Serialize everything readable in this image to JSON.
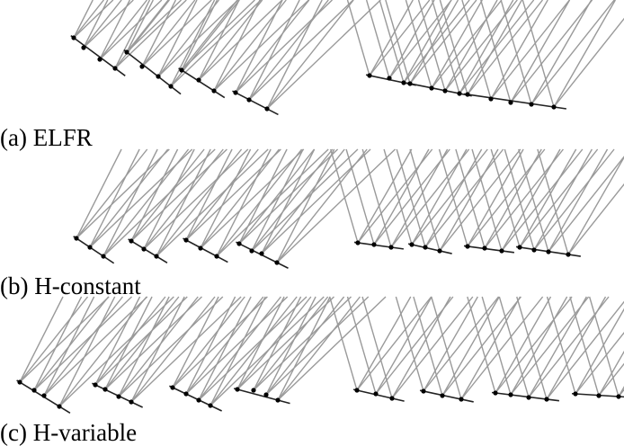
{
  "panels": [
    {
      "caption": "(a) ELFR",
      "groups": [
        {
          "pts": [
            [
              82,
              42
            ],
            [
              93,
              53
            ],
            [
              111,
              66
            ],
            [
              128,
              76
            ]
          ],
          "slant": "left"
        },
        {
          "pts": [
            [
              141,
              58
            ],
            [
              158,
              74
            ],
            [
              176,
              85
            ],
            [
              190,
              96
            ]
          ],
          "slant": "left"
        },
        {
          "pts": [
            [
              202,
              78
            ],
            [
              221,
              89
            ],
            [
              238,
              101
            ]
          ],
          "slant": "left"
        },
        {
          "pts": [
            [
              262,
              103
            ],
            [
              277,
              111
            ],
            [
              297,
              121
            ]
          ],
          "slant": "left"
        },
        {
          "pts": [
            [
              411,
              84
            ],
            [
              433,
              87
            ],
            [
              449,
              92
            ]
          ],
          "slant": "right"
        },
        {
          "pts": [
            [
              456,
              93
            ],
            [
              480,
              98
            ],
            [
              495,
              101
            ],
            [
              511,
              104
            ]
          ],
          "slant": "right"
        },
        {
          "pts": [
            [
              520,
              105
            ],
            [
              546,
              110
            ],
            [
              568,
              114
            ],
            [
              591,
              116
            ],
            [
              616,
              119
            ]
          ],
          "slant": "right"
        }
      ]
    },
    {
      "caption": "(b) H-constant",
      "groups": [
        {
          "pts": [
            [
              85,
              265
            ],
            [
              100,
              275
            ],
            [
              115,
              285
            ]
          ],
          "slant": "left"
        },
        {
          "pts": [
            [
              146,
              268
            ],
            [
              160,
              277
            ],
            [
              174,
              285
            ]
          ],
          "slant": "left"
        },
        {
          "pts": [
            [
              207,
              267
            ],
            [
              223,
              276
            ],
            [
              241,
              285
            ]
          ],
          "slant": "left"
        },
        {
          "pts": [
            [
              266,
              271
            ],
            [
              280,
              279
            ],
            [
              291,
              282
            ],
            [
              308,
              292
            ]
          ],
          "slant": "left"
        },
        {
          "pts": [
            [
              398,
              270
            ],
            [
              416,
              272
            ],
            [
              435,
              275
            ]
          ],
          "slant": "right"
        },
        {
          "pts": [
            [
              458,
              272
            ],
            [
              473,
              275
            ],
            [
              489,
              279
            ]
          ],
          "slant": "right"
        },
        {
          "pts": [
            [
              520,
              274
            ],
            [
              539,
              276
            ],
            [
              558,
              279
            ]
          ],
          "slant": "right"
        },
        {
          "pts": [
            [
              578,
              275
            ],
            [
              594,
              278
            ],
            [
              610,
              280
            ],
            [
              632,
              283
            ]
          ],
          "slant": "right"
        }
      ]
    },
    {
      "caption": "(c) H-variable",
      "groups": [
        {
          "pts": [
            [
              22,
              425
            ],
            [
              38,
              434
            ],
            [
              49,
              440
            ],
            [
              66,
              452
            ]
          ],
          "slant": "left"
        },
        {
          "pts": [
            [
              106,
              428
            ],
            [
              117,
              433
            ],
            [
              132,
              441
            ],
            [
              146,
              447
            ]
          ],
          "slant": "left"
        },
        {
          "pts": [
            [
              192,
              431
            ],
            [
              207,
              438
            ],
            [
              221,
              445
            ],
            [
              234,
              451
            ]
          ],
          "slant": "left"
        },
        {
          "pts": [
            [
              264,
              433
            ],
            [
              282,
              434
            ],
            [
              296,
              439
            ],
            [
              309,
              445
            ]
          ],
          "slant": "left"
        },
        {
          "pts": [
            [
              397,
              434
            ],
            [
              418,
              438
            ],
            [
              436,
              443
            ]
          ],
          "slant": "right"
        },
        {
          "pts": [
            [
              471,
              435
            ],
            [
              492,
              440
            ],
            [
              513,
              444
            ]
          ],
          "slant": "right"
        },
        {
          "pts": [
            [
              551,
              437
            ],
            [
              568,
              439
            ],
            [
              588,
              442
            ],
            [
              608,
              444
            ]
          ],
          "slant": "right"
        },
        {
          "pts": [
            [
              640,
              438
            ],
            [
              666,
              440
            ],
            [
              688,
              441
            ]
          ],
          "slant": "right"
        }
      ]
    }
  ]
}
